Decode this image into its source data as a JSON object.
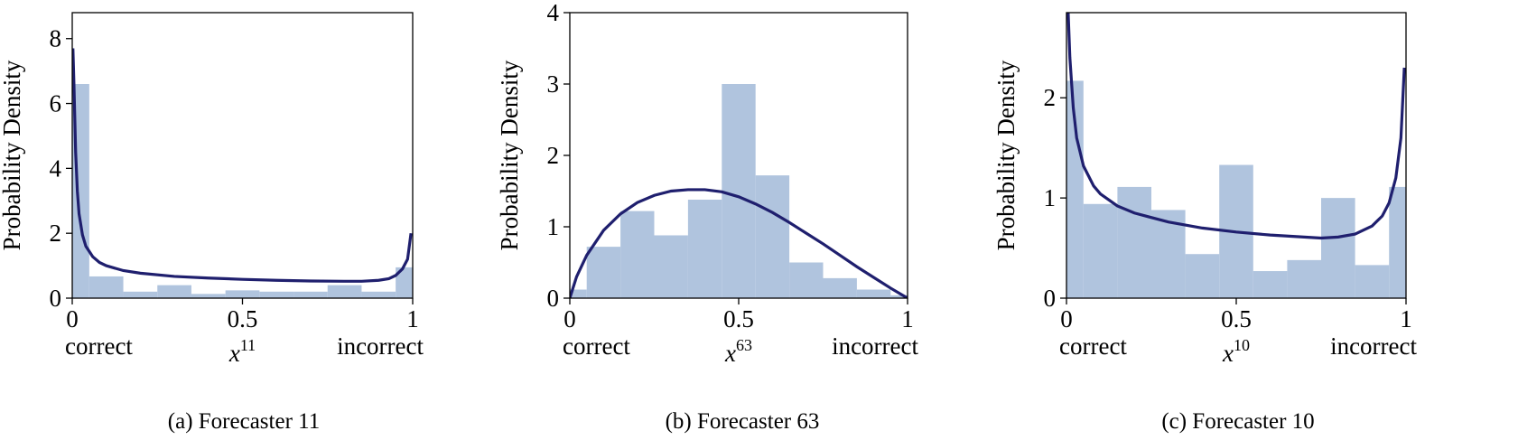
{
  "charts": [
    {
      "type": "bar+line",
      "caption": "(a) Forecaster 11",
      "ylabel": "Probability Density",
      "x_left_label": "correct",
      "x_var": "x",
      "x_sup": "11",
      "x_right_label": "incorrect",
      "xlim": [
        0,
        1
      ],
      "ylim": [
        0,
        8.8
      ],
      "xticks": [
        "0",
        "0.5",
        "1"
      ],
      "yticks": [
        0,
        2,
        4,
        6,
        8
      ],
      "bins": [
        0,
        0.05,
        0.15,
        0.25,
        0.35,
        0.45,
        0.55,
        0.65,
        0.75,
        0.85,
        0.95,
        1
      ],
      "hist_values": [
        6.6,
        0.67,
        0.2,
        0.4,
        0.13,
        0.24,
        0.2,
        0.2,
        0.4,
        0.2,
        0.95
      ],
      "curve": [
        [
          0.002,
          7.7
        ],
        [
          0.005,
          6.6
        ],
        [
          0.01,
          4.5
        ],
        [
          0.015,
          3.3
        ],
        [
          0.02,
          2.6
        ],
        [
          0.03,
          1.95
        ],
        [
          0.04,
          1.6
        ],
        [
          0.06,
          1.28
        ],
        [
          0.08,
          1.1
        ],
        [
          0.1,
          1.0
        ],
        [
          0.15,
          0.85
        ],
        [
          0.2,
          0.77
        ],
        [
          0.3,
          0.67
        ],
        [
          0.4,
          0.62
        ],
        [
          0.5,
          0.58
        ],
        [
          0.6,
          0.55
        ],
        [
          0.7,
          0.53
        ],
        [
          0.8,
          0.52
        ],
        [
          0.85,
          0.52
        ],
        [
          0.9,
          0.55
        ],
        [
          0.93,
          0.6
        ],
        [
          0.95,
          0.7
        ],
        [
          0.97,
          0.9
        ],
        [
          0.985,
          1.2
        ],
        [
          0.995,
          2.0
        ]
      ]
    },
    {
      "type": "bar+line",
      "caption": "(b) Forecaster 63",
      "ylabel": "Probability Density",
      "x_left_label": "correct",
      "x_var": "x",
      "x_sup": "63",
      "x_right_label": "incorrect",
      "xlim": [
        0,
        1
      ],
      "ylim": [
        0,
        4
      ],
      "xticks": [
        "0",
        "0.5",
        "1"
      ],
      "yticks": [
        0,
        1,
        2,
        3,
        4
      ],
      "bins": [
        0,
        0.05,
        0.15,
        0.25,
        0.35,
        0.45,
        0.55,
        0.65,
        0.75,
        0.85,
        0.95,
        1
      ],
      "hist_values": [
        0.12,
        0.72,
        1.22,
        0.88,
        1.38,
        3.0,
        1.72,
        0.5,
        0.28,
        0.12,
        0.04
      ],
      "curve": [
        [
          0,
          0
        ],
        [
          0.02,
          0.3
        ],
        [
          0.05,
          0.6
        ],
        [
          0.1,
          0.95
        ],
        [
          0.15,
          1.18
        ],
        [
          0.2,
          1.34
        ],
        [
          0.25,
          1.44
        ],
        [
          0.3,
          1.5
        ],
        [
          0.35,
          1.52
        ],
        [
          0.4,
          1.52
        ],
        [
          0.45,
          1.49
        ],
        [
          0.5,
          1.42
        ],
        [
          0.55,
          1.32
        ],
        [
          0.6,
          1.2
        ],
        [
          0.65,
          1.06
        ],
        [
          0.7,
          0.91
        ],
        [
          0.75,
          0.76
        ],
        [
          0.8,
          0.6
        ],
        [
          0.85,
          0.44
        ],
        [
          0.9,
          0.29
        ],
        [
          0.95,
          0.14
        ],
        [
          1.0,
          0
        ]
      ]
    },
    {
      "type": "bar+line",
      "caption": "(c) Forecaster 10",
      "ylabel": "Probability Density",
      "x_left_label": "correct",
      "x_var": "x",
      "x_sup": "10",
      "x_right_label": "incorrect",
      "xlim": [
        0,
        1
      ],
      "ylim": [
        0,
        2.85
      ],
      "xticks": [
        "0",
        "0.5",
        "1"
      ],
      "yticks": [
        0,
        1,
        2
      ],
      "bins": [
        0,
        0.05,
        0.15,
        0.25,
        0.35,
        0.45,
        0.55,
        0.65,
        0.75,
        0.85,
        0.95,
        1
      ],
      "hist_values": [
        2.17,
        0.94,
        1.11,
        0.88,
        0.44,
        1.33,
        0.27,
        0.38,
        1.0,
        0.33,
        1.11
      ],
      "curve": [
        [
          0.005,
          2.85
        ],
        [
          0.01,
          2.4
        ],
        [
          0.02,
          1.9
        ],
        [
          0.03,
          1.6
        ],
        [
          0.05,
          1.32
        ],
        [
          0.08,
          1.12
        ],
        [
          0.1,
          1.04
        ],
        [
          0.15,
          0.92
        ],
        [
          0.2,
          0.85
        ],
        [
          0.3,
          0.76
        ],
        [
          0.4,
          0.7
        ],
        [
          0.5,
          0.66
        ],
        [
          0.6,
          0.63
        ],
        [
          0.7,
          0.61
        ],
        [
          0.75,
          0.6
        ],
        [
          0.8,
          0.61
        ],
        [
          0.85,
          0.64
        ],
        [
          0.9,
          0.72
        ],
        [
          0.93,
          0.82
        ],
        [
          0.95,
          0.95
        ],
        [
          0.97,
          1.2
        ],
        [
          0.985,
          1.6
        ],
        [
          0.995,
          2.3
        ]
      ]
    }
  ],
  "colors": {
    "hist": "#b0c4de",
    "curve": "#1f1f6e",
    "axis": "#000000"
  }
}
